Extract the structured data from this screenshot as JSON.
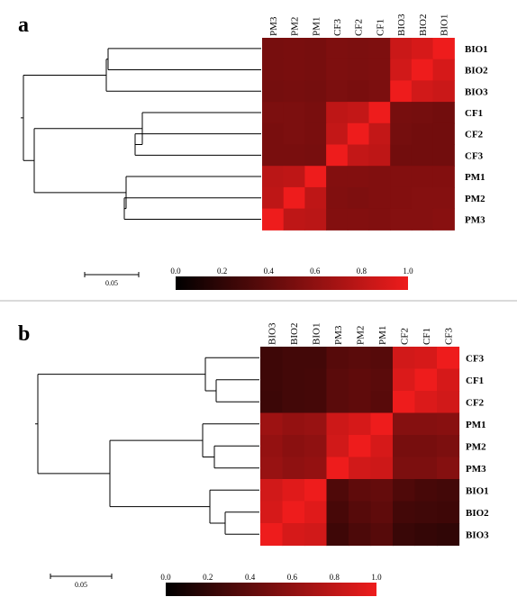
{
  "chart_data": [
    {
      "type": "heatmap",
      "panel_label": "a",
      "columns": [
        "PM3",
        "PM2",
        "PM1",
        "CF3",
        "CF2",
        "CF1",
        "BIO3",
        "BIO2",
        "BIO1"
      ],
      "rows": [
        "BIO1",
        "BIO2",
        "BIO3",
        "CF1",
        "CF2",
        "CF3",
        "PM1",
        "PM2",
        "PM3"
      ],
      "values": [
        [
          0.5,
          0.51,
          0.5,
          0.53,
          0.52,
          0.53,
          0.85,
          0.9,
          1.0
        ],
        [
          0.5,
          0.51,
          0.5,
          0.53,
          0.52,
          0.53,
          0.88,
          1.0,
          0.9
        ],
        [
          0.49,
          0.5,
          0.49,
          0.52,
          0.51,
          0.52,
          1.0,
          0.88,
          0.85
        ],
        [
          0.52,
          0.52,
          0.51,
          0.8,
          0.82,
          1.0,
          0.5,
          0.49,
          0.48
        ],
        [
          0.51,
          0.52,
          0.51,
          0.82,
          1.0,
          0.82,
          0.49,
          0.48,
          0.48
        ],
        [
          0.51,
          0.51,
          0.5,
          1.0,
          0.82,
          0.8,
          0.48,
          0.48,
          0.48
        ],
        [
          0.78,
          0.8,
          1.0,
          0.55,
          0.55,
          0.54,
          0.55,
          0.55,
          0.55
        ],
        [
          0.8,
          1.0,
          0.8,
          0.54,
          0.53,
          0.54,
          0.55,
          0.56,
          0.56
        ],
        [
          1.0,
          0.8,
          0.78,
          0.55,
          0.55,
          0.54,
          0.56,
          0.56,
          0.57
        ]
      ],
      "colorbar": {
        "min": 0.0,
        "max": 1.0,
        "ticks": [
          "0.0",
          "0.2",
          "0.4",
          "0.6",
          "0.8",
          "1.0"
        ],
        "colors": [
          "#000000",
          "#ee1c1c"
        ]
      },
      "scale_bar_label": "0.05",
      "dendrogram_leaf_order": [
        "BIO1",
        "BIO2",
        "BIO3",
        "CF1",
        "CF2",
        "CF3",
        "PM1",
        "PM2",
        "PM3"
      ]
    },
    {
      "type": "heatmap",
      "panel_label": "b",
      "columns": [
        "BIO3",
        "BIO2",
        "BIO1",
        "PM3",
        "PM2",
        "PM1",
        "CF2",
        "CF1",
        "CF3"
      ],
      "rows": [
        "CF3",
        "CF1",
        "CF2",
        "PM1",
        "PM2",
        "PM3",
        "BIO1",
        "BIO2",
        "BIO3"
      ],
      "values": [
        [
          0.26,
          0.28,
          0.28,
          0.36,
          0.38,
          0.36,
          0.88,
          0.9,
          1.0
        ],
        [
          0.26,
          0.28,
          0.29,
          0.38,
          0.4,
          0.38,
          0.92,
          1.0,
          0.9
        ],
        [
          0.25,
          0.28,
          0.29,
          0.38,
          0.4,
          0.37,
          1.0,
          0.92,
          0.88
        ],
        [
          0.66,
          0.62,
          0.64,
          0.86,
          0.9,
          1.0,
          0.56,
          0.56,
          0.57
        ],
        [
          0.62,
          0.58,
          0.6,
          0.88,
          1.0,
          0.9,
          0.5,
          0.5,
          0.52
        ],
        [
          0.64,
          0.6,
          0.62,
          1.0,
          0.88,
          0.86,
          0.52,
          0.52,
          0.56
        ],
        [
          0.88,
          0.94,
          1.0,
          0.33,
          0.4,
          0.42,
          0.33,
          0.3,
          0.28
        ],
        [
          0.9,
          1.0,
          0.94,
          0.3,
          0.36,
          0.4,
          0.28,
          0.27,
          0.26
        ],
        [
          1.0,
          0.9,
          0.88,
          0.26,
          0.32,
          0.36,
          0.24,
          0.22,
          0.2
        ]
      ],
      "colorbar": {
        "min": 0.0,
        "max": 1.0,
        "ticks": [
          "0.0",
          "0.2",
          "0.4",
          "0.6",
          "0.8",
          "1.0"
        ],
        "colors": [
          "#000000",
          "#ee1c1c"
        ]
      },
      "scale_bar_label": "0.05",
      "dendrogram_leaf_order": [
        "CF3",
        "CF1",
        "CF2",
        "PM1",
        "PM2",
        "PM3",
        "BIO1",
        "BIO2",
        "BIO3"
      ]
    }
  ]
}
